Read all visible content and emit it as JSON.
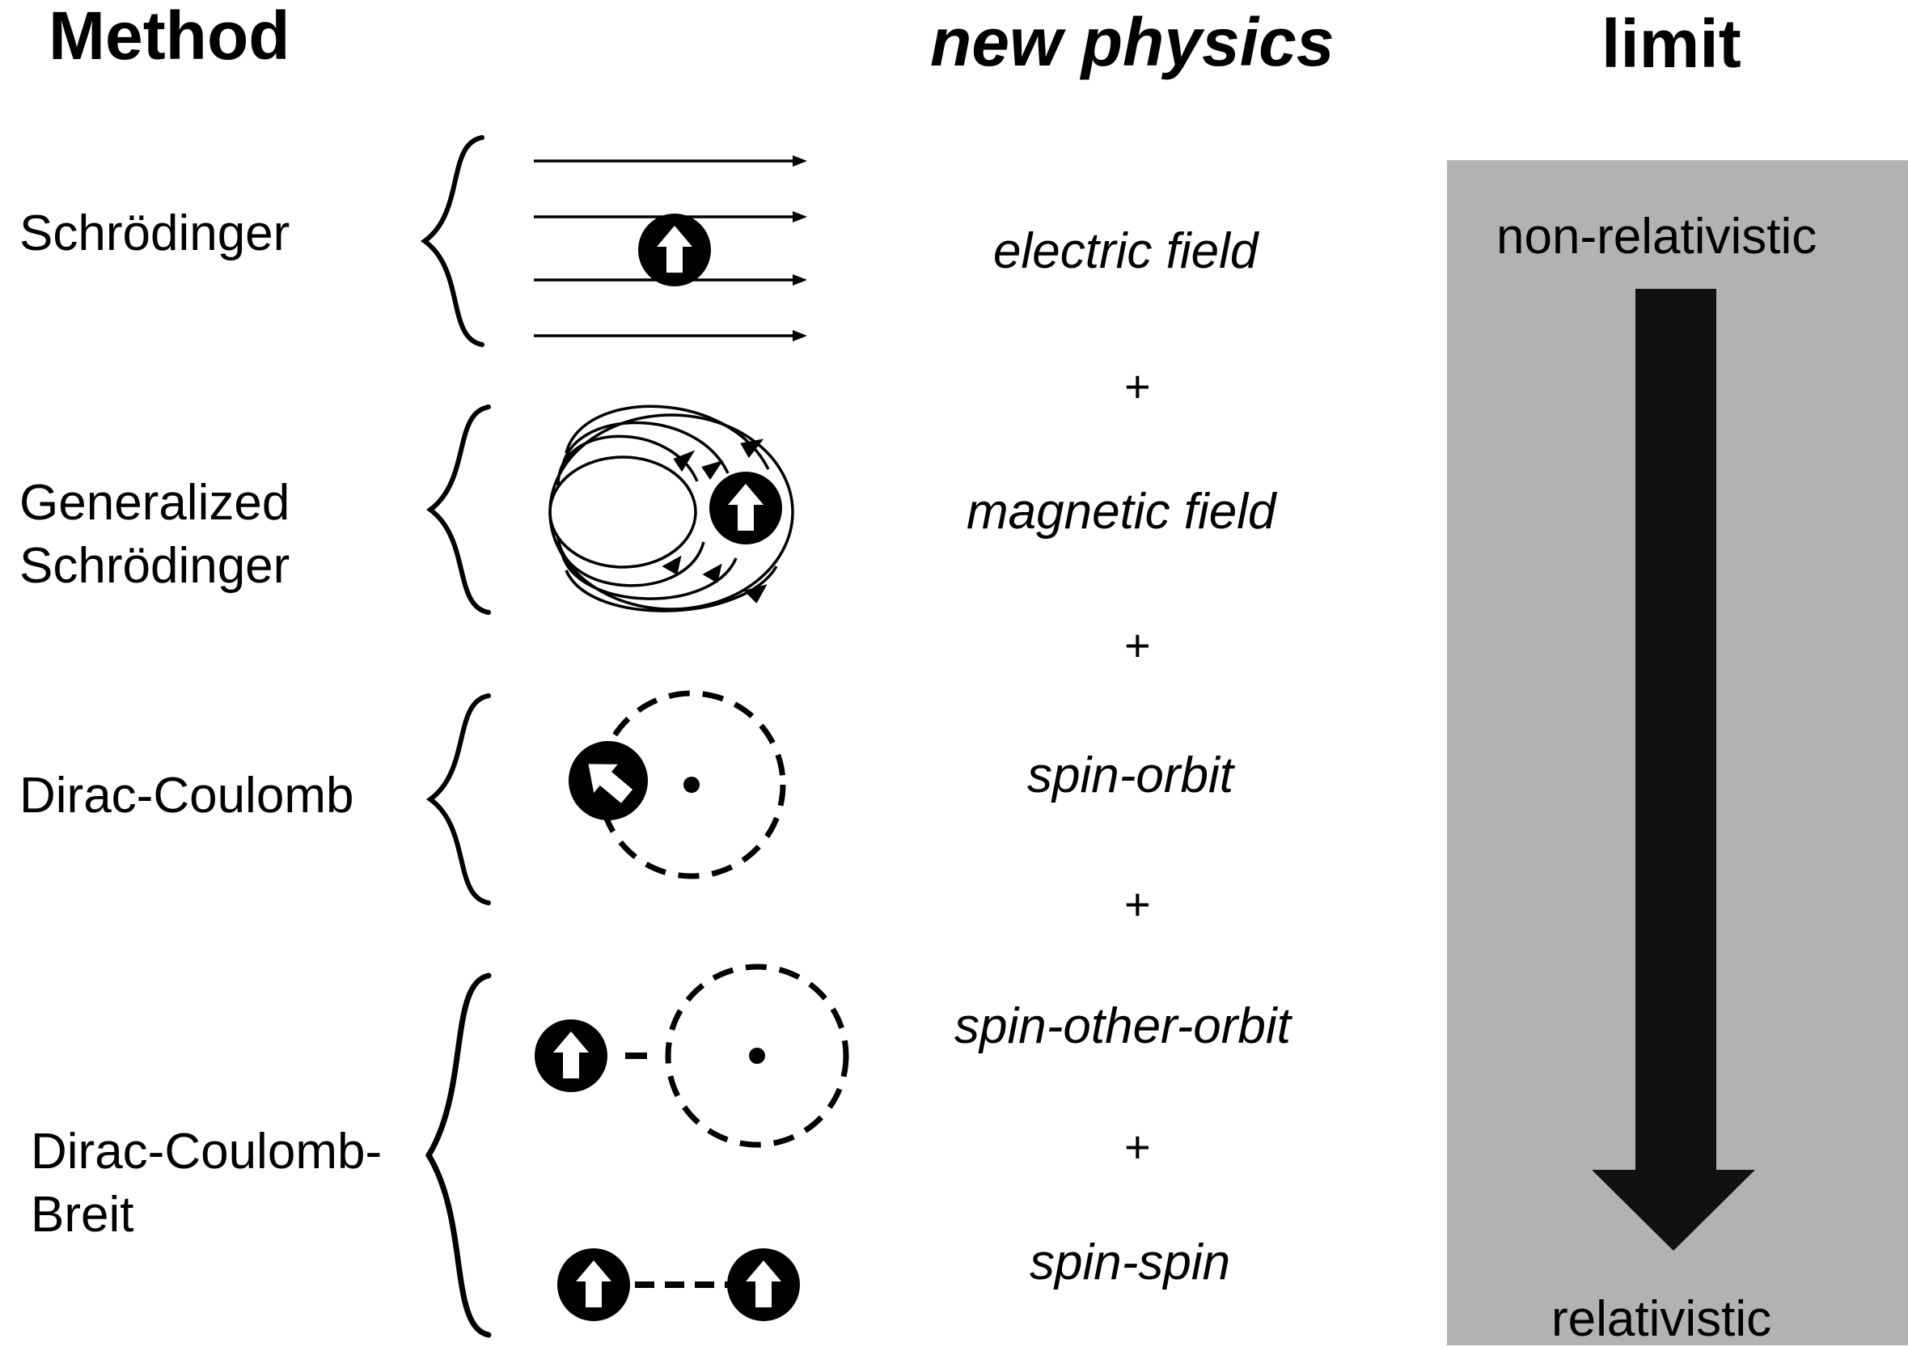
{
  "headers": {
    "method": "Method",
    "new_physics": "new physics",
    "limit": "limit"
  },
  "methods": [
    {
      "label": "Schrödinger"
    },
    {
      "label": "Generalized\nSchrödinger"
    },
    {
      "label": "Dirac-Coulomb"
    },
    {
      "label": "Dirac-Coulomb-\nBreit"
    }
  ],
  "physics": [
    {
      "label": "electric field"
    },
    {
      "label": "magnetic field"
    },
    {
      "label": "spin-orbit"
    },
    {
      "label": "spin-other-orbit"
    },
    {
      "label": "spin-spin"
    }
  ],
  "plus_sign": "+",
  "limit": {
    "top_label": "non-relativistic",
    "bottom_label": "relativistic",
    "panel_color": "#b2b2b2",
    "arrow_color": "#111111"
  }
}
